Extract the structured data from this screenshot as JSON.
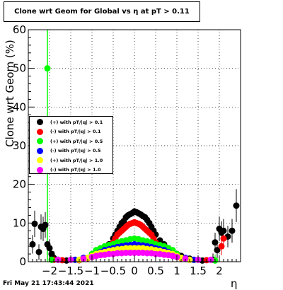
{
  "chart_data": {
    "type": "scatter",
    "title": "Clone wrt Geom for Global vs   η at pT > 0.11",
    "xlabel": "η",
    "ylabel": "Clone wrt Geom (%)",
    "xlim": [
      -2.5,
      2.5
    ],
    "ylim": [
      0,
      60
    ],
    "xticks": [
      -2,
      -1.5,
      -1,
      -0.5,
      0,
      0.5,
      1,
      1.5,
      2
    ],
    "xtick_labels": [
      "−2",
      "−1.5",
      "−1",
      "−0.5",
      "0",
      "0.5",
      "1",
      "1.5",
      "2"
    ],
    "yticks": [
      0,
      10,
      20,
      30,
      40,
      50,
      60
    ],
    "ytick_labels": [
      "0",
      "10",
      "20",
      "30",
      "40",
      "50",
      "60"
    ],
    "grid": true,
    "legend_position": "middle-left",
    "series": [
      {
        "name": "(+) with pT/|q| > 0.1",
        "color": "#000000",
        "points": [
          [
            -2.4,
            4.5
          ],
          [
            -2.35,
            9.8
          ],
          [
            -2.25,
            2.5
          ],
          [
            -2.2,
            9
          ],
          [
            -2.15,
            8.5
          ],
          [
            -2.1,
            9.5
          ],
          [
            -2.05,
            4.5
          ],
          [
            -2.0,
            3.5
          ],
          [
            -1.95,
            2.0
          ],
          [
            -1.9,
            1.0
          ],
          [
            -1.8,
            0.5
          ],
          [
            -1.6,
            0.3
          ],
          [
            -1.3,
            0.4
          ],
          [
            -1.1,
            1.0
          ],
          [
            -1.0,
            1.5
          ],
          [
            -0.9,
            2.0
          ],
          [
            -0.8,
            2.5
          ],
          [
            -0.7,
            3.5
          ],
          [
            -0.6,
            4.5
          ],
          [
            -0.5,
            6.0
          ],
          [
            -0.45,
            7.0
          ],
          [
            -0.4,
            8.0
          ],
          [
            -0.35,
            9.0
          ],
          [
            -0.3,
            10.0
          ],
          [
            -0.25,
            10.5
          ],
          [
            -0.2,
            11.5
          ],
          [
            -0.15,
            12.0
          ],
          [
            -0.1,
            12.3
          ],
          [
            -0.05,
            12.6
          ],
          [
            0.0,
            13.0
          ],
          [
            0.05,
            12.8
          ],
          [
            0.1,
            12.5
          ],
          [
            0.15,
            12.2
          ],
          [
            0.2,
            11.8
          ],
          [
            0.25,
            11.5
          ],
          [
            0.3,
            10.8
          ],
          [
            0.35,
            10.0
          ],
          [
            0.4,
            9.0
          ],
          [
            0.45,
            8.0
          ],
          [
            0.5,
            7.0
          ],
          [
            0.6,
            5.5
          ],
          [
            0.7,
            4.5
          ],
          [
            0.8,
            3.5
          ],
          [
            0.9,
            2.5
          ],
          [
            1.0,
            2.0
          ],
          [
            1.1,
            1.5
          ],
          [
            1.3,
            0.8
          ],
          [
            1.6,
            0.3
          ],
          [
            1.85,
            0.5
          ],
          [
            1.9,
            5.0
          ],
          [
            1.95,
            3.0
          ],
          [
            2.0,
            8.5
          ],
          [
            2.05,
            7.5
          ],
          [
            2.1,
            8.0
          ],
          [
            2.2,
            6.5
          ],
          [
            2.3,
            8.0
          ],
          [
            2.4,
            14.5
          ]
        ]
      },
      {
        "name": "(-) with pT/|q| > 0.1",
        "color": "#ff0000",
        "points": [
          [
            -1.9,
            0.5
          ],
          [
            -1.7,
            0.4
          ],
          [
            -1.3,
            0.4
          ],
          [
            -1.1,
            0.9
          ],
          [
            -1.0,
            1.3
          ],
          [
            -0.9,
            1.7
          ],
          [
            -0.8,
            2.3
          ],
          [
            -0.7,
            3.0
          ],
          [
            -0.6,
            4.0
          ],
          [
            -0.5,
            5.0
          ],
          [
            -0.45,
            6.0
          ],
          [
            -0.4,
            7.0
          ],
          [
            -0.35,
            7.5
          ],
          [
            -0.3,
            8.0
          ],
          [
            -0.25,
            8.5
          ],
          [
            -0.2,
            9.0
          ],
          [
            -0.15,
            9.5
          ],
          [
            -0.1,
            9.8
          ],
          [
            -0.05,
            10.0
          ],
          [
            0.0,
            10.2
          ],
          [
            0.05,
            10.0
          ],
          [
            0.1,
            9.8
          ],
          [
            0.15,
            9.5
          ],
          [
            0.2,
            9.0
          ],
          [
            0.25,
            8.5
          ],
          [
            0.3,
            8.0
          ],
          [
            0.35,
            7.5
          ],
          [
            0.4,
            7.0
          ],
          [
            0.45,
            6.0
          ],
          [
            0.5,
            5.0
          ],
          [
            0.6,
            4.0
          ],
          [
            0.7,
            3.0
          ],
          [
            0.8,
            2.3
          ],
          [
            0.9,
            1.7
          ],
          [
            1.0,
            1.3
          ],
          [
            1.1,
            0.9
          ],
          [
            1.3,
            0.5
          ],
          [
            1.7,
            0.4
          ],
          [
            2.05,
            4.0
          ],
          [
            2.1,
            6.0
          ]
        ]
      },
      {
        "name": "(+) with pT/|q| > 0.5",
        "color": "#00ff00",
        "points": [
          [
            -2.05,
            50
          ],
          [
            -1.95,
            0.5
          ],
          [
            -1.5,
            0.5
          ],
          [
            -1.2,
            1.0
          ],
          [
            -1.0,
            2.0
          ],
          [
            -0.9,
            3.0
          ],
          [
            -0.8,
            3.5
          ],
          [
            -0.7,
            4.0
          ],
          [
            -0.6,
            4.3
          ],
          [
            -0.5,
            4.5
          ],
          [
            -0.4,
            5.0
          ],
          [
            -0.3,
            5.3
          ],
          [
            -0.2,
            5.5
          ],
          [
            -0.1,
            5.8
          ],
          [
            0.0,
            6.0
          ],
          [
            0.1,
            5.8
          ],
          [
            0.2,
            5.5
          ],
          [
            0.3,
            5.3
          ],
          [
            0.4,
            5.0
          ],
          [
            0.5,
            4.5
          ],
          [
            0.6,
            4.3
          ],
          [
            0.7,
            4.0
          ],
          [
            0.8,
            3.5
          ],
          [
            0.9,
            3.0
          ],
          [
            1.0,
            2.0
          ],
          [
            1.2,
            1.0
          ],
          [
            1.5,
            0.5
          ],
          [
            1.9,
            0.3
          ]
        ]
      },
      {
        "name": "(-) with pT/|q| > 0.5",
        "color": "#0000ff",
        "points": [
          [
            -1.4,
            0.5
          ],
          [
            -1.2,
            1.0
          ],
          [
            -1.0,
            1.5
          ],
          [
            -0.9,
            2.0
          ],
          [
            -0.8,
            2.5
          ],
          [
            -0.7,
            3.0
          ],
          [
            -0.6,
            3.2
          ],
          [
            -0.5,
            3.5
          ],
          [
            -0.4,
            3.8
          ],
          [
            -0.3,
            4.0
          ],
          [
            -0.2,
            4.2
          ],
          [
            -0.1,
            4.3
          ],
          [
            0.0,
            4.5
          ],
          [
            0.1,
            4.3
          ],
          [
            0.2,
            4.2
          ],
          [
            0.3,
            4.0
          ],
          [
            0.4,
            3.8
          ],
          [
            0.5,
            3.5
          ],
          [
            0.6,
            3.2
          ],
          [
            0.7,
            3.0
          ],
          [
            0.8,
            2.5
          ],
          [
            0.9,
            2.0
          ],
          [
            1.0,
            1.5
          ],
          [
            1.2,
            1.0
          ],
          [
            1.4,
            0.5
          ]
        ]
      },
      {
        "name": "(+) with pT/|q| > 1.0",
        "color": "#ffff00",
        "points": [
          [
            -1.3,
            0.5
          ],
          [
            -1.1,
            1.0
          ],
          [
            -1.0,
            1.5
          ],
          [
            -0.9,
            2.0
          ],
          [
            -0.8,
            2.3
          ],
          [
            -0.7,
            2.5
          ],
          [
            -0.6,
            2.8
          ],
          [
            -0.5,
            3.0
          ],
          [
            -0.4,
            3.2
          ],
          [
            -0.3,
            3.3
          ],
          [
            -0.2,
            3.5
          ],
          [
            -0.1,
            3.5
          ],
          [
            0.0,
            3.5
          ],
          [
            0.1,
            3.5
          ],
          [
            0.2,
            3.5
          ],
          [
            0.3,
            3.3
          ],
          [
            0.4,
            3.2
          ],
          [
            0.5,
            3.0
          ],
          [
            0.6,
            2.8
          ],
          [
            0.7,
            2.5
          ],
          [
            0.8,
            2.3
          ],
          [
            0.9,
            2.0
          ],
          [
            1.0,
            1.5
          ],
          [
            1.1,
            1.0
          ],
          [
            1.3,
            0.5
          ]
        ]
      },
      {
        "name": "(-) with pT/|q| > 1.0",
        "color": "#ff00ff",
        "points": [
          [
            -1.8,
            0.5
          ],
          [
            -1.5,
            0.5
          ],
          [
            -1.2,
            0.8
          ],
          [
            -1.0,
            1.2
          ],
          [
            -0.9,
            1.5
          ],
          [
            -0.8,
            1.7
          ],
          [
            -0.7,
            1.8
          ],
          [
            -0.6,
            2.0
          ],
          [
            -0.5,
            2.0
          ],
          [
            -0.4,
            2.2
          ],
          [
            -0.3,
            2.2
          ],
          [
            -0.2,
            2.3
          ],
          [
            -0.1,
            2.3
          ],
          [
            0.0,
            2.3
          ],
          [
            0.1,
            2.3
          ],
          [
            0.2,
            2.3
          ],
          [
            0.3,
            2.2
          ],
          [
            0.4,
            2.2
          ],
          [
            0.5,
            2.0
          ],
          [
            0.6,
            2.0
          ],
          [
            0.7,
            1.8
          ],
          [
            0.8,
            1.7
          ],
          [
            0.9,
            1.5
          ],
          [
            1.0,
            1.2
          ],
          [
            1.2,
            0.8
          ],
          [
            1.5,
            0.5
          ],
          [
            1.8,
            0.5
          ]
        ]
      }
    ]
  },
  "footer": {
    "timestamp": "Fri May 21 17:43:44 2021"
  }
}
